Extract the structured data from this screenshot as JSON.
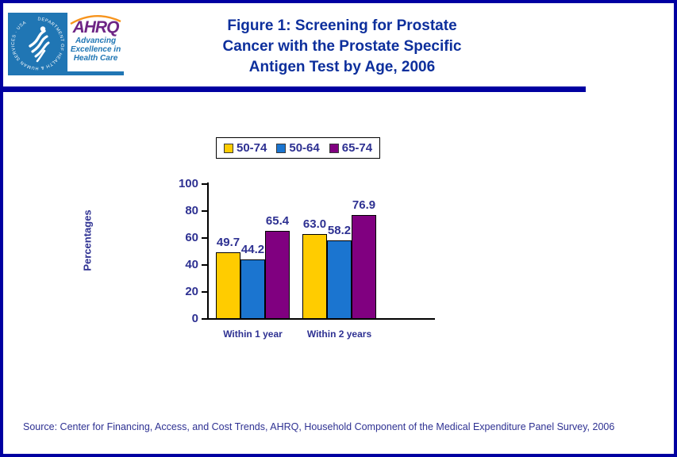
{
  "page": {
    "title": "Figure 1: Screening for Prostate\nCancer with the Prostate Specific\nAntigen Test by Age, 2006",
    "source": "Source: Center for Financing, Access, and Cost Trends, AHRQ, Household Component of the Medical Expenditure Panel Survey, 2006"
  },
  "logo": {
    "hhs_ring_text": "DEPARTMENT OF HEALTH & HUMAN SERVICES · USA",
    "ahrq_name": "AHRQ",
    "tagline": "Advancing\nExcellence in\nHealth Care"
  },
  "colors": {
    "page_border_blue": "#0000a1",
    "title_navy": "#0d2f9c",
    "chart_text_navy": "#2e3192",
    "hhs_blue": "#2076b4",
    "ahrq_purple": "#6e2585",
    "arc_orange": "#f7941d",
    "bar_outline": "#000000"
  },
  "chart_data": {
    "type": "bar",
    "categories": [
      "Within 1 year",
      "Within 2 years"
    ],
    "series": [
      {
        "name": "50-74",
        "color": "#ffcc00",
        "values": [
          49.7,
          63.0
        ]
      },
      {
        "name": "50-64",
        "color": "#1b75d0",
        "values": [
          44.2,
          58.2
        ]
      },
      {
        "name": "65-74",
        "color": "#800080",
        "values": [
          65.4,
          76.9
        ]
      }
    ],
    "ylabel": "Percentages",
    "xlabel": "",
    "ylim": [
      0,
      100
    ],
    "yticks": [
      0,
      20,
      40,
      60,
      80,
      100
    ],
    "legend_position": "top",
    "grid": false,
    "value_labels_decimals": 1
  }
}
